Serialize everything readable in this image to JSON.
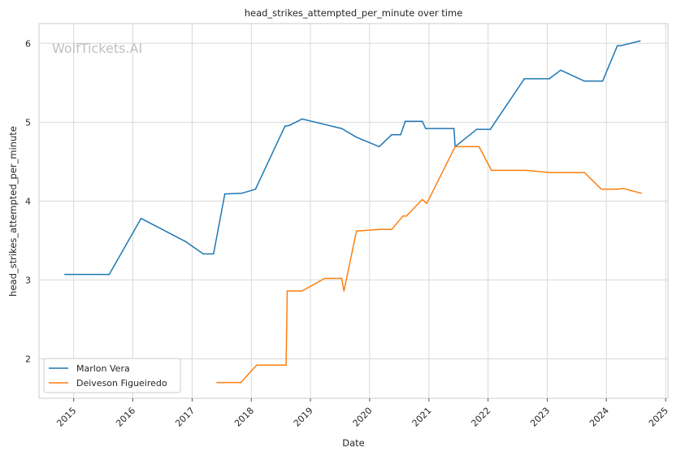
{
  "chart_data": {
    "type": "line",
    "title": "head_strikes_attempted_per_minute over time",
    "xlabel": "Date",
    "ylabel": "head_strikes_attempted_per_minute",
    "watermark": "WolfTickets.AI",
    "xlim": [
      "2014-06-01",
      "2025-01-15"
    ],
    "ylim": [
      1.5,
      6.25
    ],
    "x_ticks": [
      "2015",
      "2016",
      "2017",
      "2018",
      "2019",
      "2020",
      "2021",
      "2022",
      "2023",
      "2024",
      "2025"
    ],
    "y_ticks": [
      "2",
      "3",
      "4",
      "5",
      "6"
    ],
    "grid": true,
    "legend_position": "lower-left",
    "series": [
      {
        "name": "Marlon Vera",
        "color": "#1f77b4",
        "points": [
          [
            "2014-11-08",
            3.07
          ],
          [
            "2015-08-08",
            3.07
          ],
          [
            "2016-02-21",
            3.78
          ],
          [
            "2016-11-19",
            3.49
          ],
          [
            "2017-03-11",
            3.33
          ],
          [
            "2017-05-13",
            3.33
          ],
          [
            "2017-07-22",
            4.09
          ],
          [
            "2017-11-04",
            4.1
          ],
          [
            "2018-01-27",
            4.15
          ],
          [
            "2018-07-28",
            4.95
          ],
          [
            "2018-08-25",
            4.96
          ],
          [
            "2018-11-10",
            5.04
          ],
          [
            "2019-07-13",
            4.92
          ],
          [
            "2019-10-12",
            4.81
          ],
          [
            "2020-02-29",
            4.69
          ],
          [
            "2020-05-16",
            4.84
          ],
          [
            "2020-07-11",
            4.84
          ],
          [
            "2020-08-08",
            5.01
          ],
          [
            "2020-11-21",
            5.01
          ],
          [
            "2020-12-12",
            4.92
          ],
          [
            "2021-06-05",
            4.92
          ],
          [
            "2021-06-12",
            4.69
          ],
          [
            "2021-10-23",
            4.91
          ],
          [
            "2022-01-15",
            4.91
          ],
          [
            "2022-08-13",
            5.55
          ],
          [
            "2023-01-14",
            5.55
          ],
          [
            "2023-03-25",
            5.66
          ],
          [
            "2023-08-19",
            5.52
          ],
          [
            "2023-12-09",
            5.52
          ],
          [
            "2024-03-09",
            5.97
          ],
          [
            "2024-03-30",
            5.97
          ],
          [
            "2024-07-27",
            6.03
          ]
        ]
      },
      {
        "name": "Deiveson Figueiredo",
        "color": "#ff7f0e",
        "points": [
          [
            "2017-06-03",
            1.7
          ],
          [
            "2017-10-28",
            1.7
          ],
          [
            "2018-02-03",
            1.92
          ],
          [
            "2018-08-04",
            1.92
          ],
          [
            "2018-08-11",
            2.86
          ],
          [
            "2018-11-10",
            2.86
          ],
          [
            "2019-03-30",
            3.02
          ],
          [
            "2019-07-13",
            3.02
          ],
          [
            "2019-07-27",
            2.86
          ],
          [
            "2019-10-12",
            3.62
          ],
          [
            "2020-02-29",
            3.64
          ],
          [
            "2020-05-16",
            3.64
          ],
          [
            "2020-07-25",
            3.81
          ],
          [
            "2020-08-15",
            3.81
          ],
          [
            "2020-11-21",
            4.02
          ],
          [
            "2020-12-19",
            3.97
          ],
          [
            "2021-06-12",
            4.69
          ],
          [
            "2021-11-06",
            4.69
          ],
          [
            "2022-01-22",
            4.39
          ],
          [
            "2022-08-20",
            4.39
          ],
          [
            "2023-01-21",
            4.36
          ],
          [
            "2023-08-19",
            4.36
          ],
          [
            "2023-12-02",
            4.15
          ],
          [
            "2024-03-09",
            4.15
          ],
          [
            "2024-04-13",
            4.16
          ],
          [
            "2024-08-03",
            4.1
          ]
        ]
      }
    ]
  }
}
